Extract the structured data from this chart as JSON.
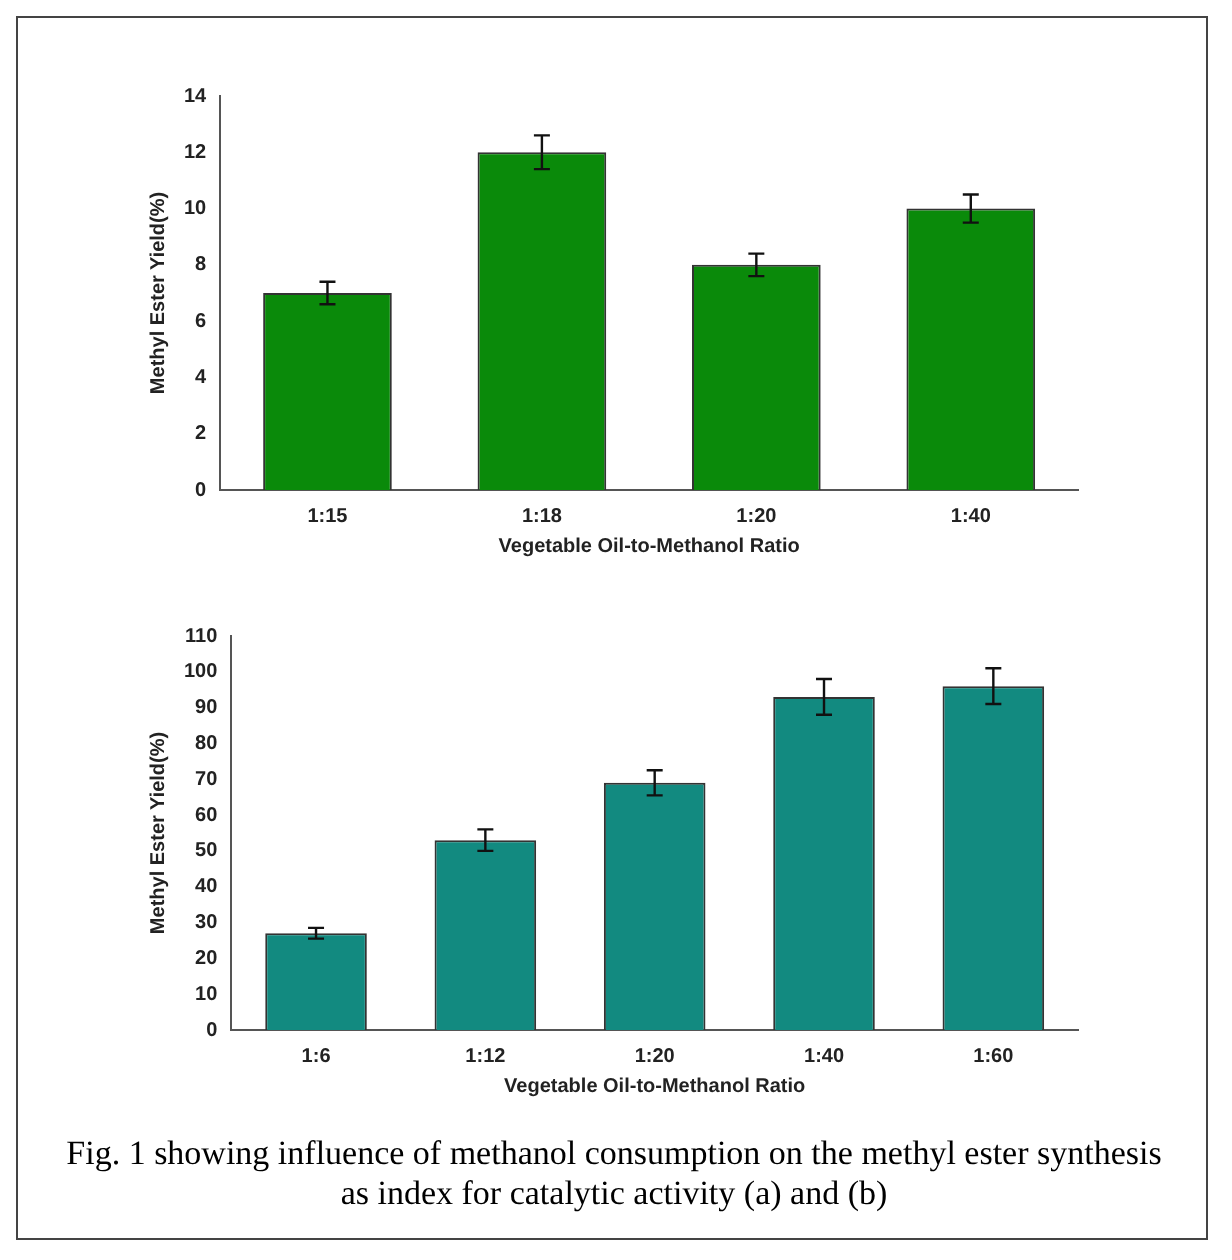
{
  "chart_data": [
    {
      "type": "bar",
      "xlabel": "Vegetable Oil-to-Methanol Ratio",
      "ylabel": "Methyl Ester Yield(%)",
      "categories": [
        "1:15",
        "1:18",
        "1:20",
        "1:40"
      ],
      "values": [
        7,
        12,
        8,
        10
      ],
      "errors": [
        0.4,
        0.6,
        0.4,
        0.5
      ],
      "color": "#0a8a0a",
      "ylim": [
        0,
        14
      ],
      "yticks": [
        0,
        2,
        4,
        6,
        8,
        10,
        12,
        14
      ],
      "grid": false,
      "legend": false
    },
    {
      "type": "bar",
      "xlabel": "Vegetable Oil-to-Methanol Ratio",
      "ylabel": "Methyl Ester Yield(%)",
      "categories": [
        "1:6",
        "1:12",
        "1:20",
        "1:40",
        "1:60"
      ],
      "values": [
        27,
        53,
        69,
        93,
        96
      ],
      "errors": [
        1.5,
        3,
        3.5,
        5,
        5
      ],
      "color": "#128a80",
      "ylim": [
        0,
        110
      ],
      "yticks": [
        0,
        10,
        20,
        30,
        40,
        50,
        60,
        70,
        80,
        90,
        100,
        110
      ],
      "grid": false,
      "legend": false,
      "annotations": [
        "Fig. 1 showing influence of methanol consumption on the methyl ester synthesis as index for catalytic activity (a) and (b)"
      ]
    }
  ]
}
